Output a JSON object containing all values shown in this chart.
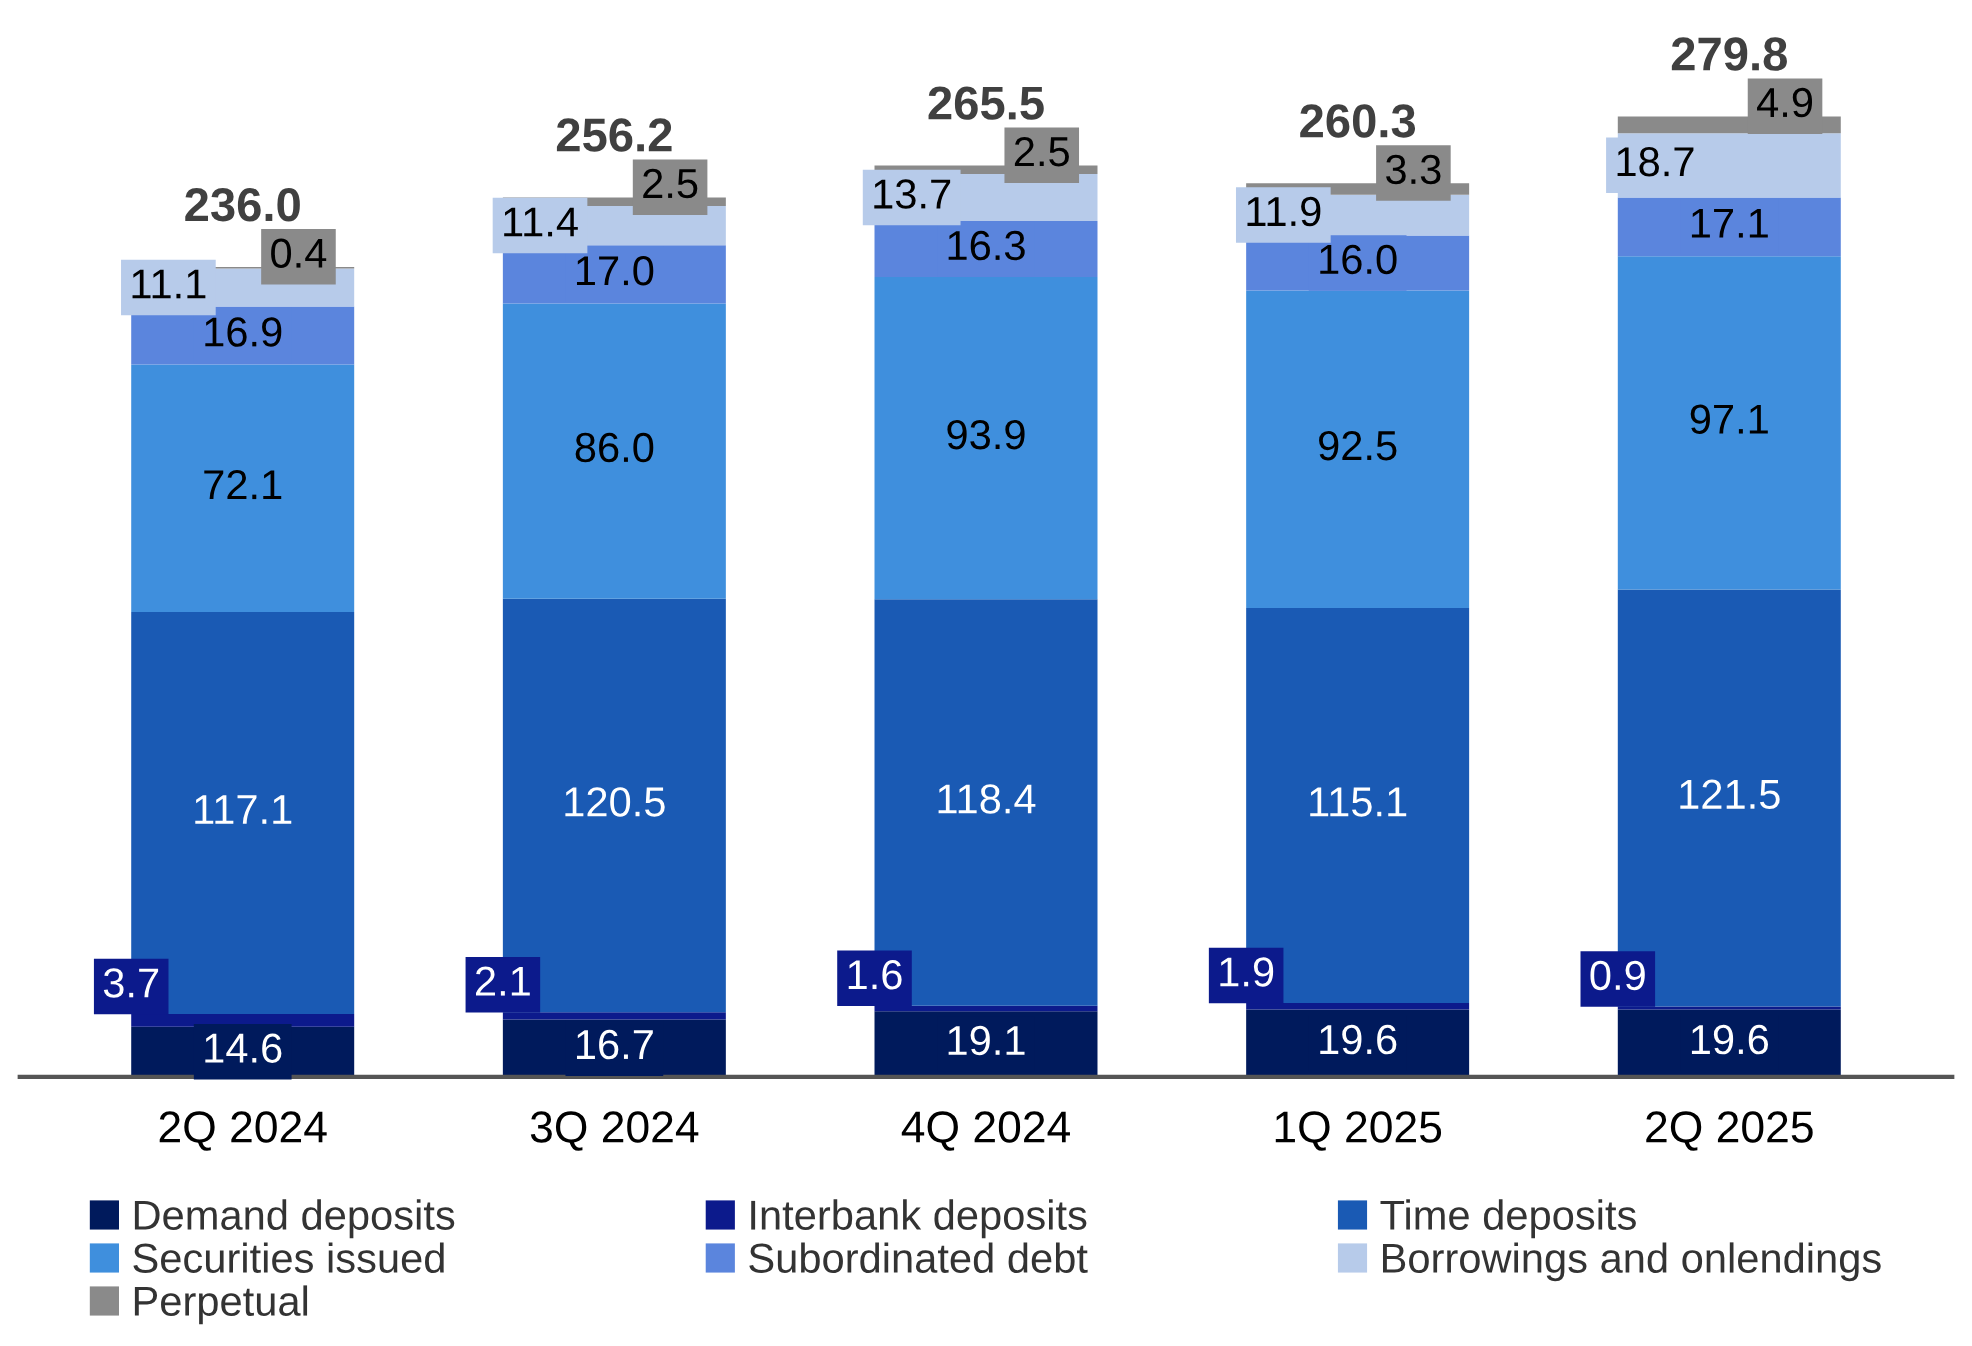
{
  "chart_data": {
    "type": "bar",
    "stacked": true,
    "legend": "bottom",
    "grid": false,
    "categories": [
      "2Q 2024",
      "3Q 2024",
      "4Q 2024",
      "1Q 2025",
      "2Q 2025"
    ],
    "series": [
      {
        "name": "Demand deposits",
        "color": "#001a5c",
        "values": [
          14.6,
          16.7,
          19.1,
          19.6,
          19.6
        ],
        "value_labels": [
          "14.6",
          "16.7",
          "19.1",
          "19.6",
          "19.6"
        ]
      },
      {
        "name": "Interbank deposits",
        "color": "#0c1a8c",
        "values": [
          3.7,
          2.1,
          1.6,
          1.9,
          0.9
        ],
        "value_labels": [
          "3.7",
          "2.1",
          "1.6",
          "1.9",
          "0.9"
        ]
      },
      {
        "name": "Time deposits",
        "color": "#1a5ab4",
        "values": [
          117.1,
          120.5,
          118.4,
          115.1,
          121.5
        ],
        "value_labels": [
          "117.1",
          "120.5",
          "118.4",
          "115.1",
          "121.5"
        ]
      },
      {
        "name": "Securities issued",
        "color": "#3f8fdd",
        "values": [
          72.1,
          86.0,
          93.9,
          92.5,
          97.1
        ],
        "value_labels": [
          "72.1",
          "86.0",
          "93.9",
          "92.5",
          "97.1"
        ]
      },
      {
        "name": "Subordinated debt",
        "color": "#5b85dd",
        "values": [
          16.9,
          17.0,
          16.3,
          16.0,
          17.1
        ],
        "value_labels": [
          "16.9",
          "17.0",
          "16.3",
          "16.0",
          "17.1"
        ]
      },
      {
        "name": "Borrowings and onlendings",
        "color": "#b7cbea",
        "values": [
          11.1,
          11.4,
          13.7,
          11.9,
          18.7
        ],
        "value_labels": [
          "11.1",
          "11.4",
          "13.7",
          "11.9",
          "18.7"
        ]
      },
      {
        "name": "Perpetual",
        "color": "#8a8a8a",
        "values": [
          0.4,
          2.5,
          2.5,
          3.3,
          4.9
        ],
        "value_labels": [
          "0.4",
          "2.5",
          "2.5",
          "3.3",
          "4.9"
        ]
      }
    ],
    "totals": [
      "236.0",
      "256.2",
      "265.5",
      "260.3",
      "279.8"
    ]
  }
}
